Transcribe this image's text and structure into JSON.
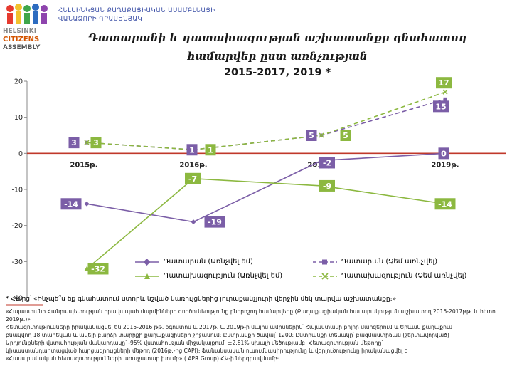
{
  "header": {
    "org_line1": "ՀԵԼՍԻՆԿՅԱՆ ՔԱՂԱՔԱՑԻԱԿԱՆ ԱՍԱՄԲԼԵԱՅԻ",
    "org_line2": "ՎԱՆԱՁՈՐԻ ԳՐԱՍԵՆՅԱԿ",
    "logo_text": "HELSINKI CITIZENS ASSEMBLY"
  },
  "colors": {
    "purple": "#7b5ea7",
    "green": "#8cb840",
    "label_purple": "#7b5ea7",
    "label_green": "#8cb840",
    "zero_line": "#c0392b"
  },
  "chart_data": {
    "type": "line",
    "title": "Դատարանի և դատախազության աշխատանքը գնահատող համարվեր ըստ առնչության",
    "subtitle": "2015-2017, 2019 *",
    "categories": [
      "2015թ.",
      "2016թ.",
      "2017թ.",
      "2019թ."
    ],
    "ylim": [
      -40,
      20
    ],
    "yticks": [
      -40,
      -30,
      -20,
      -10,
      0,
      10,
      20
    ],
    "grid": false,
    "legend_position": "bottom",
    "series": [
      {
        "name": "Դատարան (Առնչվել եմ)",
        "values": [
          -14,
          -19,
          -2,
          0
        ],
        "color": "#7b5ea7",
        "style": "solid",
        "marker": "diamond",
        "label_color": "#7b5ea7"
      },
      {
        "name": "Դատարան (Չեմ առնչվել)",
        "values": [
          3,
          1,
          5,
          15
        ],
        "color": "#7b5ea7",
        "style": "dashed",
        "marker": "square",
        "label_color": "#7b5ea7"
      },
      {
        "name": "Դատախազություն (Առնչվել եմ)",
        "values": [
          -32,
          -7,
          -9,
          -14
        ],
        "color": "#8cb840",
        "style": "solid",
        "marker": "triangle",
        "label_color": "#8cb840"
      },
      {
        "name": "Դատախազություն (Չեմ առնչվել)",
        "values": [
          3,
          1,
          5,
          17
        ],
        "color": "#8cb840",
        "style": "dashed",
        "marker": "x",
        "label_color": "#8cb840"
      }
    ]
  },
  "notes": {
    "question": "* Հարց՝ «Ինչպե՞ս եք գնահատում ստորև նշված կառույցներից յուրաքանչյուրի վերջին մեկ տարվա աշխատանքը։»",
    "line1": "«Հայաստանի Հանրապետության իրավապահ մարմինների գործունեությունը բնորոշող համարվերը (Քաղաքացիական հասարակության աշխատող 2015-2017թթ. և հետո 2019թ.)»",
    "line2": "Հետազոտությունները իրականացվել են 2015-2016 թթ. օգոստոս և 2017թ. և 2019թ-ի մայիս ամիսներին՝ Հայաստանի բոլոր մարզերում և Երևան քաղաքում",
    "line3": "բնակվող 18 տարեկան և ավելի բարձր տարիքի քաղաքացիների շրջանում։ Ընտրանքի ծավալ՝ 1200։ Ընտրանքի տեսակը՝ բազմաստիճան (շերտավորված)",
    "line4": "Արդյունքների վստահության մակարդակը՝ -95% վստահության միջակայքում, ±2.81% սխալի մեծությամբ։ Հետազոտության մեթոդը՝",
    "line5": "կիսաստանդարտացված հարցազրույցների մեթոդ (2016թ.-ից CAPI)։ Ֆանանսական ուսումնասիրությունը և վերլուծությունը իրականացվել է",
    "line6": "«Հասարակական հետազոտությունների առաջատար խումբ» ( APR Group) ՀԿ-ի ներգրավմամբ։"
  }
}
